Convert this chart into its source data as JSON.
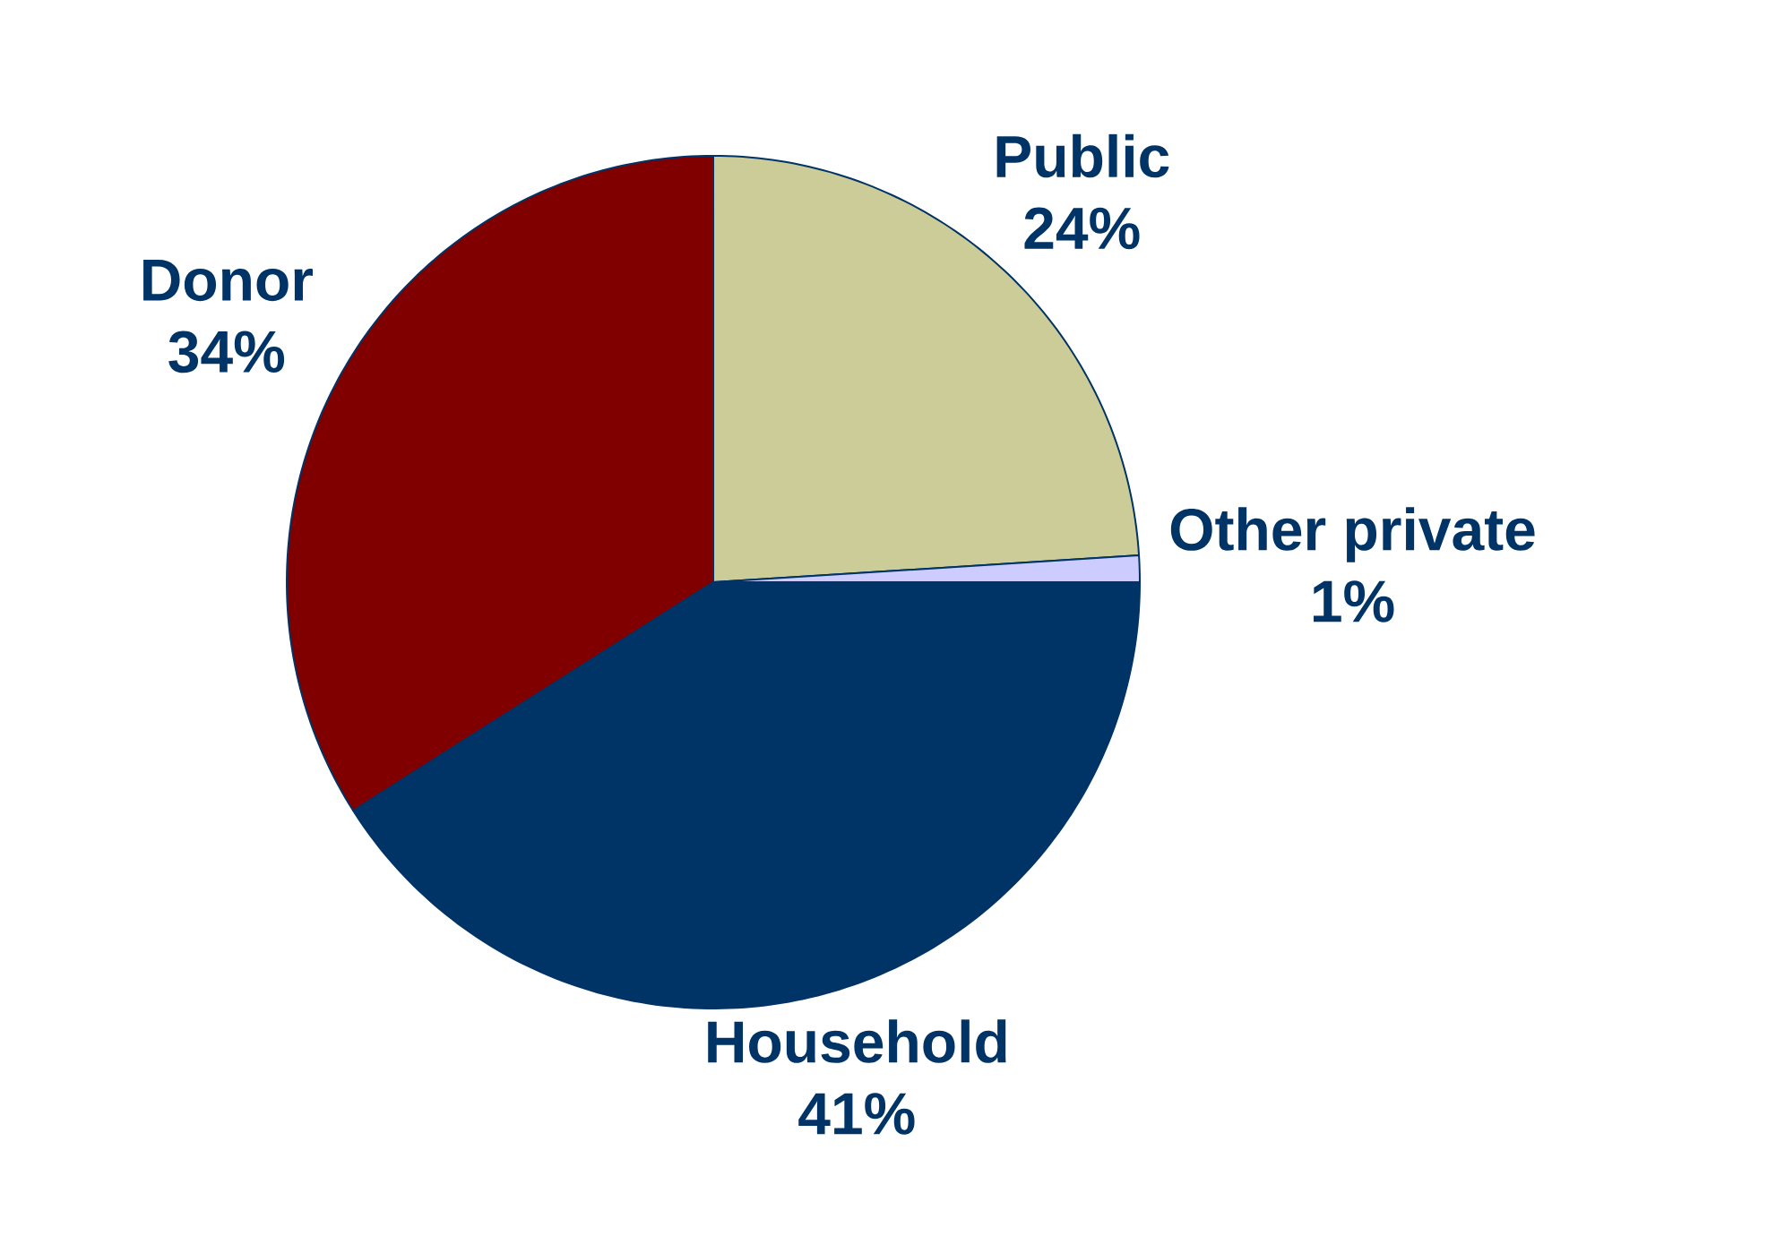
{
  "chart_data": {
    "type": "pie",
    "categories": [
      "Public",
      "Other private",
      "Household",
      "Donor"
    ],
    "values": [
      24,
      1,
      41,
      34
    ],
    "value_labels": [
      "24%",
      "1%",
      "41%",
      "34%"
    ],
    "colors": [
      "#cccc99",
      "#ccccff",
      "#003366",
      "#800000"
    ]
  }
}
